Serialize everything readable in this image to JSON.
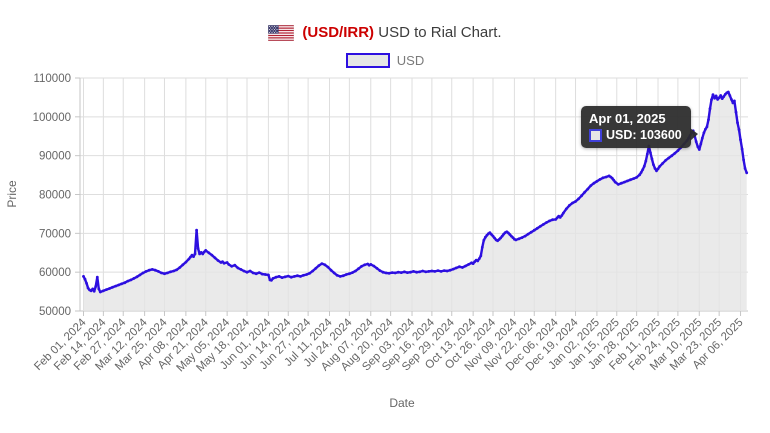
{
  "header": {
    "title_pair": "(USD/IRR)",
    "title_rest": " USD to Rial Chart.",
    "flag_icon": "us-flag"
  },
  "legend": {
    "label": "USD"
  },
  "tooltip": {
    "date": "Apr 01, 2025",
    "series": "USD",
    "value": "103600",
    "text": "USD: 103600"
  },
  "colors": {
    "line": "#2d0fe0",
    "area_fill": "rgba(228,228,228,0.78)",
    "grid": "#dedede",
    "axis": "#c6c6c6",
    "tick_label": "#666666",
    "title_accent": "#cc0000",
    "title_text": "#3c3c3c",
    "legend_fill": "#e6e6e6",
    "tooltip_bg": "#2c2c2c"
  },
  "chart_data": {
    "type": "area",
    "title": "(USD/IRR) USD to Rial Chart.",
    "xlabel": "Date",
    "ylabel": "Price",
    "ylim": [
      50000,
      110000
    ],
    "ytick_step": 10000,
    "ytick_labels": [
      "50000",
      "60000",
      "70000",
      "80000",
      "90000",
      "100000",
      "110000"
    ],
    "grid": true,
    "legend_position": "top-center",
    "x_domain_days": [
      0,
      435
    ],
    "x_tick_days": [
      0,
      13,
      26,
      40,
      53,
      67,
      80,
      94,
      107,
      121,
      134,
      147,
      161,
      174,
      188,
      201,
      215,
      228,
      241,
      255,
      268,
      282,
      295,
      309,
      322,
      336,
      349,
      362,
      376,
      389,
      403,
      416,
      430
    ],
    "x_tick_labels": [
      "Feb 01, 2024",
      "Feb 14, 2024",
      "Feb 27, 2024",
      "Mar 12, 2024",
      "Mar 25, 2024",
      "Apr 08, 2024",
      "Apr 21, 2024",
      "May 05, 2024",
      "May 18, 2024",
      "Jun 01, 2024",
      "Jun 14, 2024",
      "Jun 27, 2024",
      "Jul 11, 2024",
      "Jul 24, 2024",
      "Aug 07, 2024",
      "Aug 20, 2024",
      "Sep 03, 2024",
      "Sep 16, 2024",
      "Sep 29, 2024",
      "Oct 13, 2024",
      "Oct 26, 2024",
      "Nov 09, 2024",
      "Nov 22, 2024",
      "Dec 06, 2024",
      "Dec 19, 2024",
      "Jan 02, 2025",
      "Jan 15, 2025",
      "Jan 28, 2025",
      "Feb 11, 2025",
      "Feb 24, 2025",
      "Mar 10, 2025",
      "Mar 23, 2025",
      "Apr 06, 2025"
    ],
    "hover_point": {
      "day": 425,
      "value": 103600,
      "date": "Apr 01, 2025"
    },
    "series": [
      {
        "name": "USD",
        "points": [
          [
            0,
            58900
          ],
          [
            1,
            58200
          ],
          [
            2,
            57100
          ],
          [
            3,
            55900
          ],
          [
            4,
            55400
          ],
          [
            5,
            55200
          ],
          [
            6,
            55700
          ],
          [
            7,
            55100
          ],
          [
            8,
            56300
          ],
          [
            9,
            58700
          ],
          [
            10,
            55700
          ],
          [
            11,
            54900
          ],
          [
            13,
            55200
          ],
          [
            15,
            55500
          ],
          [
            17,
            55800
          ],
          [
            19,
            56100
          ],
          [
            21,
            56400
          ],
          [
            23,
            56700
          ],
          [
            25,
            57000
          ],
          [
            27,
            57300
          ],
          [
            29,
            57700
          ],
          [
            31,
            58000
          ],
          [
            33,
            58400
          ],
          [
            35,
            58800
          ],
          [
            37,
            59300
          ],
          [
            39,
            59800
          ],
          [
            41,
            60200
          ],
          [
            43,
            60500
          ],
          [
            45,
            60700
          ],
          [
            47,
            60500
          ],
          [
            49,
            60200
          ],
          [
            51,
            59800
          ],
          [
            53,
            59600
          ],
          [
            55,
            59800
          ],
          [
            57,
            60100
          ],
          [
            59,
            60300
          ],
          [
            61,
            60600
          ],
          [
            63,
            61200
          ],
          [
            65,
            61900
          ],
          [
            67,
            62600
          ],
          [
            69,
            63400
          ],
          [
            70,
            63900
          ],
          [
            71,
            64400
          ],
          [
            72,
            64000
          ],
          [
            73,
            64700
          ],
          [
            74,
            70800
          ],
          [
            75,
            66100
          ],
          [
            76,
            64700
          ],
          [
            77,
            65100
          ],
          [
            78,
            64700
          ],
          [
            79,
            65200
          ],
          [
            80,
            65600
          ],
          [
            82,
            65000
          ],
          [
            84,
            64400
          ],
          [
            86,
            63700
          ],
          [
            88,
            63000
          ],
          [
            90,
            62500
          ],
          [
            91,
            62700
          ],
          [
            92,
            62300
          ],
          [
            94,
            62500
          ],
          [
            95,
            62000
          ],
          [
            97,
            61500
          ],
          [
            99,
            61800
          ],
          [
            101,
            61100
          ],
          [
            103,
            60700
          ],
          [
            105,
            60300
          ],
          [
            107,
            60000
          ],
          [
            109,
            60300
          ],
          [
            111,
            59800
          ],
          [
            113,
            59600
          ],
          [
            115,
            59900
          ],
          [
            117,
            59500
          ],
          [
            119,
            59400
          ],
          [
            121,
            59300
          ],
          [
            122,
            58000
          ],
          [
            123,
            57900
          ],
          [
            124,
            58400
          ],
          [
            126,
            58700
          ],
          [
            128,
            58900
          ],
          [
            130,
            58600
          ],
          [
            132,
            58800
          ],
          [
            134,
            59000
          ],
          [
            136,
            58700
          ],
          [
            138,
            58900
          ],
          [
            140,
            59100
          ],
          [
            142,
            58900
          ],
          [
            144,
            59200
          ],
          [
            146,
            59400
          ],
          [
            148,
            59700
          ],
          [
            150,
            60300
          ],
          [
            152,
            61000
          ],
          [
            154,
            61700
          ],
          [
            156,
            62200
          ],
          [
            158,
            61900
          ],
          [
            160,
            61300
          ],
          [
            162,
            60500
          ],
          [
            164,
            59800
          ],
          [
            166,
            59200
          ],
          [
            168,
            58900
          ],
          [
            170,
            59100
          ],
          [
            172,
            59400
          ],
          [
            174,
            59600
          ],
          [
            176,
            59900
          ],
          [
            178,
            60300
          ],
          [
            180,
            60900
          ],
          [
            182,
            61500
          ],
          [
            184,
            61900
          ],
          [
            186,
            62100
          ],
          [
            187,
            61800
          ],
          [
            188,
            62000
          ],
          [
            190,
            61600
          ],
          [
            192,
            61000
          ],
          [
            194,
            60400
          ],
          [
            196,
            60000
          ],
          [
            198,
            59800
          ],
          [
            200,
            59700
          ],
          [
            202,
            59900
          ],
          [
            204,
            59800
          ],
          [
            206,
            60000
          ],
          [
            208,
            59900
          ],
          [
            210,
            60100
          ],
          [
            212,
            59900
          ],
          [
            214,
            60000
          ],
          [
            216,
            60200
          ],
          [
            218,
            60000
          ],
          [
            220,
            60100
          ],
          [
            222,
            60300
          ],
          [
            224,
            60100
          ],
          [
            226,
            60200
          ],
          [
            228,
            60300
          ],
          [
            230,
            60200
          ],
          [
            232,
            60400
          ],
          [
            234,
            60200
          ],
          [
            236,
            60400
          ],
          [
            238,
            60300
          ],
          [
            240,
            60500
          ],
          [
            242,
            60800
          ],
          [
            244,
            61100
          ],
          [
            246,
            61400
          ],
          [
            248,
            61200
          ],
          [
            250,
            61600
          ],
          [
            252,
            62000
          ],
          [
            254,
            62400
          ],
          [
            255,
            62200
          ],
          [
            256,
            62700
          ],
          [
            257,
            63100
          ],
          [
            258,
            62900
          ],
          [
            259,
            63500
          ],
          [
            260,
            64200
          ],
          [
            261,
            66400
          ],
          [
            262,
            68200
          ],
          [
            263,
            69000
          ],
          [
            264,
            69500
          ],
          [
            265,
            69900
          ],
          [
            266,
            70200
          ],
          [
            267,
            69700
          ],
          [
            268,
            69300
          ],
          [
            269,
            68800
          ],
          [
            270,
            68300
          ],
          [
            271,
            68100
          ],
          [
            272,
            68400
          ],
          [
            273,
            68800
          ],
          [
            274,
            69300
          ],
          [
            275,
            69800
          ],
          [
            276,
            70200
          ],
          [
            277,
            70400
          ],
          [
            278,
            70100
          ],
          [
            279,
            69700
          ],
          [
            280,
            69300
          ],
          [
            281,
            68900
          ],
          [
            282,
            68500
          ],
          [
            283,
            68300
          ],
          [
            285,
            68600
          ],
          [
            287,
            68900
          ],
          [
            289,
            69300
          ],
          [
            291,
            69800
          ],
          [
            293,
            70300
          ],
          [
            295,
            70800
          ],
          [
            297,
            71300
          ],
          [
            299,
            71800
          ],
          [
            301,
            72300
          ],
          [
            303,
            72800
          ],
          [
            305,
            73200
          ],
          [
            307,
            73500
          ],
          [
            309,
            73600
          ],
          [
            310,
            74000
          ],
          [
            311,
            74400
          ],
          [
            312,
            74100
          ],
          [
            313,
            74600
          ],
          [
            314,
            75200
          ],
          [
            316,
            76300
          ],
          [
            318,
            77200
          ],
          [
            320,
            77800
          ],
          [
            322,
            78200
          ],
          [
            324,
            78900
          ],
          [
            326,
            79700
          ],
          [
            328,
            80600
          ],
          [
            330,
            81400
          ],
          [
            332,
            82300
          ],
          [
            334,
            82900
          ],
          [
            336,
            83400
          ],
          [
            338,
            83900
          ],
          [
            340,
            84300
          ],
          [
            342,
            84500
          ],
          [
            344,
            84800
          ],
          [
            345,
            84500
          ],
          [
            346,
            84200
          ],
          [
            347,
            83700
          ],
          [
            348,
            83200
          ],
          [
            350,
            82600
          ],
          [
            352,
            82900
          ],
          [
            354,
            83200
          ],
          [
            356,
            83500
          ],
          [
            358,
            83800
          ],
          [
            360,
            84100
          ],
          [
            362,
            84400
          ],
          [
            364,
            85100
          ],
          [
            365,
            85700
          ],
          [
            366,
            86400
          ],
          [
            367,
            87300
          ],
          [
            368,
            88600
          ],
          [
            369,
            90400
          ],
          [
            370,
            92500
          ],
          [
            371,
            90800
          ],
          [
            372,
            89200
          ],
          [
            373,
            87700
          ],
          [
            374,
            86700
          ],
          [
            375,
            86100
          ],
          [
            376,
            86600
          ],
          [
            377,
            87200
          ],
          [
            379,
            88000
          ],
          [
            381,
            88800
          ],
          [
            383,
            89400
          ],
          [
            385,
            90000
          ],
          [
            387,
            90600
          ],
          [
            389,
            91300
          ],
          [
            391,
            92100
          ],
          [
            393,
            93000
          ],
          [
            395,
            93900
          ],
          [
            396,
            94500
          ],
          [
            397,
            95200
          ],
          [
            398,
            95900
          ],
          [
            399,
            96400
          ],
          [
            400,
            95100
          ],
          [
            401,
            93600
          ],
          [
            402,
            92300
          ],
          [
            403,
            91600
          ],
          [
            404,
            93000
          ],
          [
            405,
            94500
          ],
          [
            406,
            95900
          ],
          [
            407,
            96800
          ],
          [
            408,
            97400
          ],
          [
            409,
            99300
          ],
          [
            410,
            102100
          ],
          [
            411,
            104400
          ],
          [
            412,
            105700
          ],
          [
            413,
            104800
          ],
          [
            414,
            105400
          ],
          [
            415,
            104500
          ],
          [
            416,
            104900
          ],
          [
            417,
            105500
          ],
          [
            418,
            104700
          ],
          [
            419,
            105200
          ],
          [
            420,
            105800
          ],
          [
            421,
            106200
          ],
          [
            422,
            106400
          ],
          [
            423,
            105500
          ],
          [
            424,
            104500
          ],
          [
            425,
            103600
          ],
          [
            426,
            104100
          ],
          [
            427,
            101200
          ],
          [
            428,
            98500
          ],
          [
            429,
            96700
          ],
          [
            430,
            94100
          ],
          [
            431,
            91700
          ],
          [
            432,
            88900
          ],
          [
            433,
            86700
          ],
          [
            434,
            85600
          ]
        ]
      }
    ]
  }
}
